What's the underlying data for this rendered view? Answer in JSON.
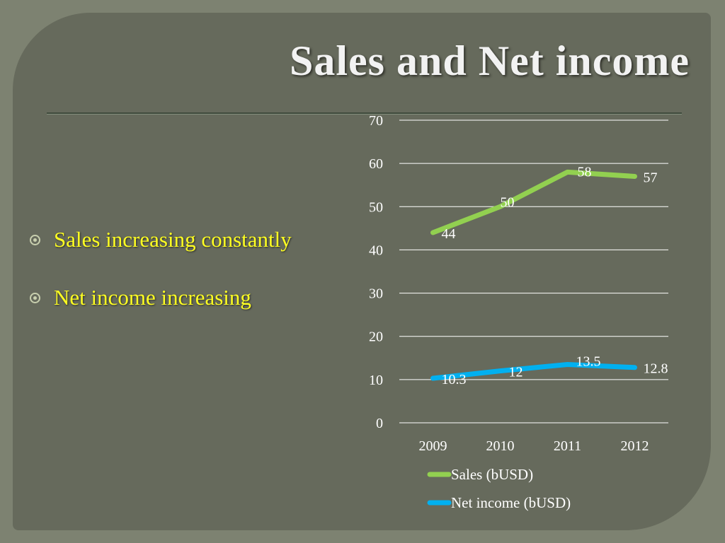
{
  "slide": {
    "title": "Sales and Net income",
    "bullets": [
      "Sales increasing constantly",
      "Net income increasing"
    ]
  },
  "chart_data": {
    "type": "line",
    "title": "",
    "xlabel": "",
    "ylabel": "",
    "categories": [
      "2009",
      "2010",
      "2011",
      "2012"
    ],
    "ylim": [
      0,
      70
    ],
    "yticks": [
      0,
      10,
      20,
      30,
      40,
      50,
      60,
      70
    ],
    "grid": true,
    "legend_position": "bottom",
    "series": [
      {
        "name": "Sales (bUSD)",
        "values": [
          44,
          50,
          58,
          57
        ],
        "labels": [
          "44",
          "50",
          "58",
          "57"
        ],
        "color": "#92d050"
      },
      {
        "name": "Net income (bUSD)",
        "values": [
          10.3,
          12,
          13.5,
          12.8
        ],
        "labels": [
          "10.3",
          "12",
          "13.5",
          "12.8"
        ],
        "color": "#00b0f0"
      }
    ]
  }
}
